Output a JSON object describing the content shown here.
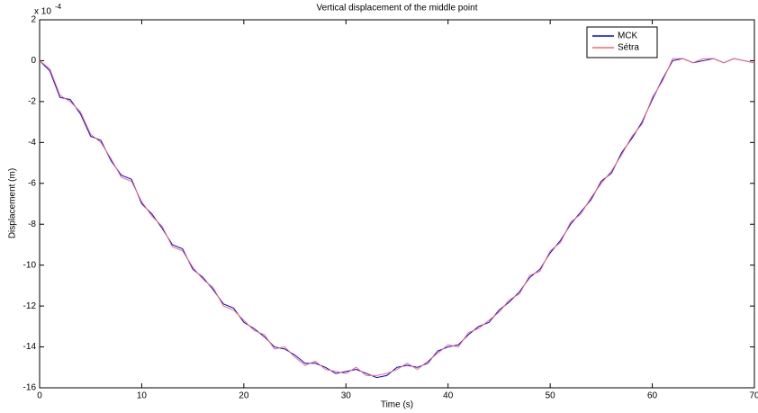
{
  "chart_data": {
    "type": "line",
    "title": "Vertical displacement of the middle point",
    "x_label": "Time (s)",
    "y_label": "Displacement (m)",
    "y_scale_base": "x 10",
    "y_scale_exponent": "-4",
    "x": [
      0,
      1,
      2,
      3,
      4,
      5,
      6,
      7,
      8,
      9,
      10,
      11,
      12,
      13,
      14,
      15,
      16,
      17,
      18,
      19,
      20,
      21,
      22,
      23,
      24,
      25,
      26,
      27,
      28,
      29,
      30,
      31,
      32,
      33,
      34,
      35,
      36,
      37,
      38,
      39,
      40,
      41,
      42,
      43,
      44,
      45,
      46,
      47,
      48,
      49,
      50,
      51,
      52,
      53,
      54,
      55,
      56,
      57,
      58,
      59,
      60,
      61,
      62,
      63,
      64,
      65,
      66,
      67,
      68,
      69,
      70
    ],
    "series": [
      {
        "name": "MCK",
        "color": "#0000ff",
        "values": [
          0,
          -0.5,
          -1.8,
          -1.9,
          -2.6,
          -3.7,
          -3.9,
          -4.9,
          -5.6,
          -5.8,
          -7.0,
          -7.5,
          -8.2,
          -9.0,
          -9.2,
          -10.2,
          -10.6,
          -11.2,
          -11.9,
          -12.1,
          -12.8,
          -13.1,
          -13.5,
          -14.0,
          -14.1,
          -14.4,
          -14.8,
          -14.8,
          -15.0,
          -15.3,
          -15.2,
          -15.1,
          -15.3,
          -15.5,
          -15.4,
          -15.0,
          -14.9,
          -15.0,
          -14.8,
          -14.2,
          -14.0,
          -13.9,
          -13.4,
          -13.0,
          -12.8,
          -12.2,
          -11.8,
          -11.3,
          -10.6,
          -10.2,
          -9.4,
          -8.8,
          -8.0,
          -7.4,
          -6.8,
          -5.9,
          -5.5,
          -4.5,
          -3.8,
          -3.0,
          -1.9,
          -0.9,
          0.0,
          0.1,
          -0.1,
          0.0,
          0.1,
          -0.1,
          0.1,
          0.0,
          -0.1
        ]
      },
      {
        "name": "Sétra",
        "color": "#ff6666",
        "values": [
          0,
          -0.4,
          -1.7,
          -2.0,
          -2.5,
          -3.6,
          -4.0,
          -4.8,
          -5.7,
          -5.9,
          -6.9,
          -7.6,
          -8.1,
          -9.1,
          -9.3,
          -10.1,
          -10.7,
          -11.1,
          -12.0,
          -12.2,
          -12.7,
          -13.2,
          -13.4,
          -14.1,
          -14.0,
          -14.5,
          -14.9,
          -14.7,
          -15.1,
          -15.2,
          -15.3,
          -15.0,
          -15.4,
          -15.4,
          -15.3,
          -15.1,
          -14.8,
          -15.1,
          -14.7,
          -14.3,
          -13.9,
          -14.0,
          -13.3,
          -13.1,
          -12.7,
          -12.3,
          -11.7,
          -11.4,
          -10.5,
          -10.3,
          -9.3,
          -8.9,
          -7.9,
          -7.5,
          -6.7,
          -6.0,
          -5.4,
          -4.6,
          -3.7,
          -3.1,
          -1.8,
          -1.0,
          0.1,
          0.1,
          -0.1,
          0.1,
          0.1,
          -0.1,
          0.1,
          0.0,
          -0.1
        ]
      }
    ],
    "xlim": [
      0,
      70
    ],
    "xticks": [
      0,
      10,
      20,
      30,
      40,
      50,
      60,
      70
    ],
    "ylim": [
      -16,
      2
    ],
    "yticks": [
      -16,
      -14,
      -12,
      -10,
      -8,
      -6,
      -4,
      -2,
      0,
      2
    ],
    "grid": false,
    "legend": "northeast"
  }
}
